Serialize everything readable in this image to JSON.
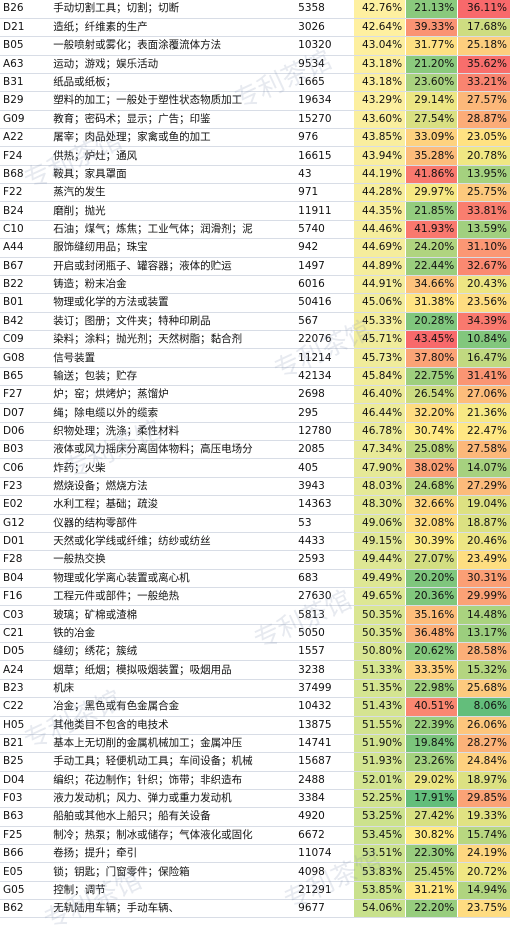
{
  "watermark": "专利茶馆",
  "table": {
    "rows": [
      [
        "B26",
        "手动切割工具；切割；切断",
        5358,
        "42.76%",
        "21.13%",
        "36.11%"
      ],
      [
        "D21",
        "造纸；纤维素的生产",
        3026,
        "42.64%",
        "39.33%",
        "17.68%"
      ],
      [
        "B05",
        "一般喷射或雾化；表面涂覆流体方法",
        10320,
        "43.04%",
        "31.77%",
        "25.18%"
      ],
      [
        "A63",
        "运动；游戏；娱乐活动",
        9534,
        "43.18%",
        "21.20%",
        "35.62%"
      ],
      [
        "B31",
        "纸品或纸板；",
        1665,
        "43.18%",
        "23.60%",
        "33.21%"
      ],
      [
        "B29",
        "塑料的加工；一般处于塑性状态物质加工",
        19634,
        "43.29%",
        "29.14%",
        "27.57%"
      ],
      [
        "G09",
        "教育；密码术；显示；广告；印鉴",
        15270,
        "43.60%",
        "27.54%",
        "28.87%"
      ],
      [
        "A22",
        "屠宰；肉品处理；家禽或鱼的加工",
        976,
        "43.85%",
        "33.09%",
        "23.05%"
      ],
      [
        "F24",
        "供热；炉灶；通风",
        16615,
        "43.94%",
        "35.28%",
        "20.78%"
      ],
      [
        "B68",
        "鞍具；家具罩面",
        43,
        "44.19%",
        "41.86%",
        "13.95%"
      ],
      [
        "F22",
        "蒸汽的发生",
        971,
        "44.28%",
        "29.97%",
        "25.75%"
      ],
      [
        "B24",
        "磨削；抛光",
        11911,
        "44.35%",
        "21.85%",
        "33.81%"
      ],
      [
        "C10",
        "石油；煤气；炼焦；工业气体；润滑剂；泥",
        5740,
        "44.46%",
        "41.93%",
        "13.59%"
      ],
      [
        "A44",
        "服饰缝纫用品；珠宝",
        942,
        "44.69%",
        "24.20%",
        "31.10%"
      ],
      [
        "B67",
        "开启或封闭瓶子、罐容器；液体的贮运",
        1497,
        "44.89%",
        "22.44%",
        "32.67%"
      ],
      [
        "B22",
        "铸造；粉末冶金",
        6016,
        "44.91%",
        "34.66%",
        "20.43%"
      ],
      [
        "B01",
        "物理或化学的方法或装置",
        50416,
        "45.06%",
        "31.38%",
        "23.56%"
      ],
      [
        "B42",
        "装订；图册；文件夹；特种印刷品",
        567,
        "45.33%",
        "20.28%",
        "34.39%"
      ],
      [
        "C09",
        "染料；涂料；抛光剂；天然树脂；黏合剂",
        22076,
        "45.71%",
        "43.45%",
        "10.84%"
      ],
      [
        "G08",
        "信号装置",
        11214,
        "45.73%",
        "37.80%",
        "16.47%"
      ],
      [
        "B65",
        "输送；包装；贮存",
        42134,
        "45.84%",
        "22.75%",
        "31.41%"
      ],
      [
        "F27",
        "炉；窑；烘烤炉；蒸馏炉",
        2698,
        "46.40%",
        "26.54%",
        "27.06%"
      ],
      [
        "D07",
        "绳；除电缆以外的缆索",
        295,
        "46.44%",
        "32.20%",
        "21.36%"
      ],
      [
        "D06",
        "织物处理；洗涤；柔性材料",
        12780,
        "46.78%",
        "30.74%",
        "22.47%"
      ],
      [
        "B03",
        "液体或风力摇床分离固体物料；高压电场分",
        2085,
        "47.34%",
        "25.08%",
        "27.58%"
      ],
      [
        "C06",
        "炸药；火柴",
        405,
        "47.90%",
        "38.02%",
        "14.07%"
      ],
      [
        "F23",
        "燃烧设备；燃烧方法",
        3943,
        "48.03%",
        "24.68%",
        "27.29%"
      ],
      [
        "E02",
        "水利工程；基础；疏浚",
        14363,
        "48.30%",
        "32.66%",
        "19.04%"
      ],
      [
        "G12",
        "仪器的结构零部件",
        53,
        "49.06%",
        "32.08%",
        "18.87%"
      ],
      [
        "D01",
        "天然或化学线或纤维；纺纱或纺丝",
        4433,
        "49.15%",
        "30.39%",
        "20.46%"
      ],
      [
        "F28",
        "一般热交换",
        2593,
        "49.44%",
        "27.07%",
        "23.49%"
      ],
      [
        "B04",
        "物理或化学离心装置或离心机",
        683,
        "49.49%",
        "20.20%",
        "30.31%"
      ],
      [
        "F16",
        "工程元件或部件；一般绝热",
        27630,
        "49.65%",
        "20.36%",
        "29.99%"
      ],
      [
        "C03",
        "玻璃；矿棉或渣棉",
        5813,
        "50.35%",
        "35.16%",
        "14.48%"
      ],
      [
        "C21",
        "铁的冶金",
        5050,
        "50.35%",
        "36.48%",
        "13.17%"
      ],
      [
        "D05",
        "缝纫；绣花；簇绒",
        1557,
        "50.80%",
        "20.62%",
        "28.58%"
      ],
      [
        "A24",
        "烟草；纸烟；模拟吸烟装置；吸烟用品",
        3238,
        "51.33%",
        "33.35%",
        "15.32%"
      ],
      [
        "B23",
        "机床",
        37499,
        "51.35%",
        "22.98%",
        "25.68%"
      ],
      [
        "C22",
        "冶金；黑色或有色金属合金",
        10432,
        "51.43%",
        "40.51%",
        "8.06%"
      ],
      [
        "H05",
        "其他类目不包含的电技术",
        13875,
        "51.55%",
        "22.39%",
        "26.06%"
      ],
      [
        "B21",
        "基本上无切削的金属机械加工；金属冲压",
        14741,
        "51.90%",
        "19.84%",
        "28.27%"
      ],
      [
        "B25",
        "手动工具；轻便机动工具；车间设备；机械",
        15687,
        "51.93%",
        "23.26%",
        "24.84%"
      ],
      [
        "D04",
        "编织；花边制作；针织；饰带；非织造布",
        2488,
        "52.01%",
        "29.02%",
        "18.97%"
      ],
      [
        "F03",
        "液力发动机；风力、弹力或重力发动机",
        3384,
        "52.25%",
        "17.91%",
        "29.85%"
      ],
      [
        "B63",
        "船舶或其他水上船只；船有关设备",
        4920,
        "53.25%",
        "27.42%",
        "19.33%"
      ],
      [
        "F25",
        "制冷；热泵；制冰或储存；气体液化或固化",
        6672,
        "53.45%",
        "30.82%",
        "15.74%"
      ],
      [
        "B66",
        "卷扬；提升；牵引",
        11074,
        "53.51%",
        "22.30%",
        "24.19%"
      ],
      [
        "E05",
        "锁；钥匙；门窗零件；保险箱",
        4098,
        "53.83%",
        "25.45%",
        "20.72%"
      ],
      [
        "G05",
        "控制；调节",
        21291,
        "53.85%",
        "31.21%",
        "14.94%"
      ],
      [
        "B62",
        "无轨陆用车辆；手动车辆、",
        9677,
        "54.06%",
        "22.20%",
        "23.75%"
      ]
    ]
  }
}
